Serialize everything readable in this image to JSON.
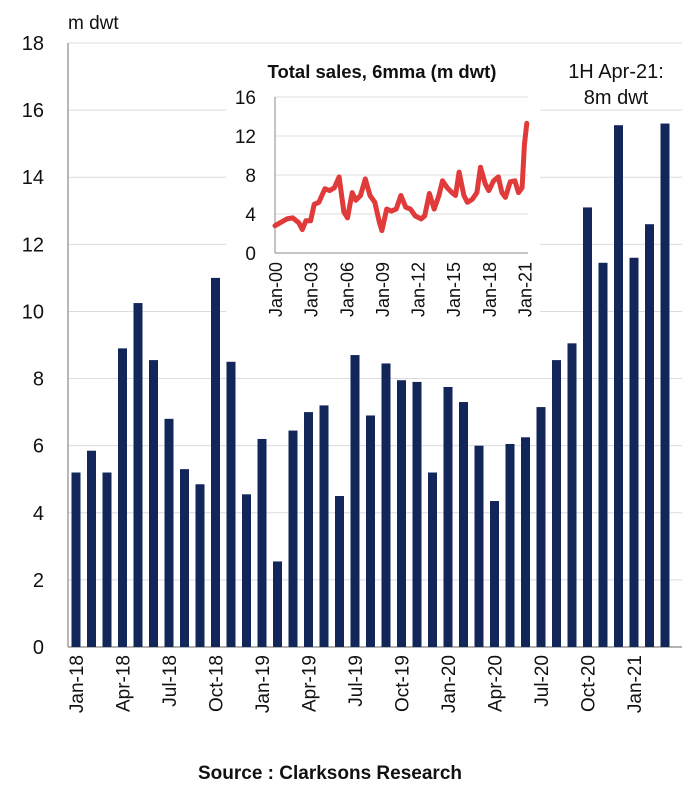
{
  "chart_data": [
    {
      "type": "bar",
      "ylabel": "m dwt",
      "ylim": [
        0,
        18
      ],
      "yticks": [
        0,
        2,
        4,
        6,
        8,
        10,
        12,
        14,
        16,
        18
      ],
      "grid": true,
      "bar_color": "#13265a",
      "categories": [
        "Jan-18",
        "Feb-18",
        "Mar-18",
        "Apr-18",
        "May-18",
        "Jun-18",
        "Jul-18",
        "Aug-18",
        "Sep-18",
        "Oct-18",
        "Nov-18",
        "Dec-18",
        "Jan-19",
        "Feb-19",
        "Mar-19",
        "Apr-19",
        "May-19",
        "Jun-19",
        "Jul-19",
        "Aug-19",
        "Sep-19",
        "Oct-19",
        "Nov-19",
        "Dec-19",
        "Jan-20",
        "Feb-20",
        "Mar-20",
        "Apr-20",
        "May-20",
        "Jun-20",
        "Jul-20",
        "Aug-20",
        "Sep-20",
        "Oct-20",
        "Nov-20",
        "Dec-20",
        "Jan-21",
        "Feb-21",
        "Mar-21"
      ],
      "xtick_labels": [
        "Jan-18",
        "Apr-18",
        "Jul-18",
        "Oct-18",
        "Jan-19",
        "Apr-19",
        "Jul-19",
        "Oct-19",
        "Jan-20",
        "Apr-20",
        "Jul-20",
        "Oct-20",
        "Jan-21"
      ],
      "values": [
        5.2,
        5.85,
        5.2,
        8.9,
        10.25,
        8.55,
        6.8,
        5.3,
        4.85,
        11.0,
        8.5,
        4.55,
        6.2,
        2.55,
        6.45,
        7.0,
        7.2,
        4.5,
        8.7,
        6.9,
        8.45,
        7.95,
        7.9,
        5.2,
        7.75,
        7.3,
        6.0,
        4.35,
        6.05,
        6.25,
        7.15,
        8.55,
        9.05,
        13.1,
        11.45,
        15.55,
        11.6,
        12.6,
        15.6
      ],
      "annotation": [
        "1H Apr-21:",
        "8m dwt"
      ]
    },
    {
      "type": "line",
      "title": "Total sales, 6mma (m dwt)",
      "ylim": [
        0,
        16
      ],
      "yticks": [
        0,
        4,
        8,
        12,
        16
      ],
      "xlim": [
        2000,
        2021.3
      ],
      "xtick_labels": [
        "Jan-00",
        "Jan-03",
        "Jan-06",
        "Jan-09",
        "Jan-12",
        "Jan-15",
        "Jan-18",
        "Jan-21"
      ],
      "grid": true,
      "line_color": "#e03a3a",
      "x": [
        2000.0,
        2001.0,
        2001.5,
        2002.0,
        2002.3,
        2002.6,
        2003.0,
        2003.3,
        2003.7,
        2004.2,
        2004.6,
        2005.0,
        2005.4,
        2005.8,
        2006.1,
        2006.5,
        2006.8,
        2007.2,
        2007.6,
        2008.0,
        2008.4,
        2008.8,
        2009.0,
        2009.4,
        2009.8,
        2010.2,
        2010.6,
        2011.0,
        2011.4,
        2011.8,
        2012.3,
        2012.6,
        2013.0,
        2013.4,
        2013.8,
        2014.1,
        2014.5,
        2014.9,
        2015.2,
        2015.5,
        2015.9,
        2016.2,
        2016.6,
        2017.0,
        2017.3,
        2017.7,
        2018.0,
        2018.4,
        2018.8,
        2019.1,
        2019.4,
        2019.8,
        2020.2,
        2020.5,
        2020.8,
        2021.0,
        2021.2
      ],
      "y": [
        2.8,
        3.5,
        3.6,
        3.1,
        2.4,
        3.3,
        3.3,
        5.0,
        5.2,
        6.6,
        6.4,
        6.7,
        7.8,
        4.2,
        3.6,
        6.2,
        5.4,
        5.9,
        7.6,
        5.9,
        5.2,
        3.1,
        2.3,
        4.5,
        4.3,
        4.5,
        5.9,
        4.7,
        4.5,
        3.8,
        3.5,
        3.8,
        6.1,
        4.5,
        5.9,
        7.4,
        6.7,
        6.2,
        5.9,
        8.3,
        5.9,
        5.2,
        5.5,
        6.2,
        8.8,
        7.1,
        6.4,
        7.4,
        7.8,
        6.2,
        5.7,
        7.3,
        7.4,
        6.2,
        6.7,
        11.1,
        13.3
      ]
    }
  ],
  "source": "Source : Clarksons Research"
}
